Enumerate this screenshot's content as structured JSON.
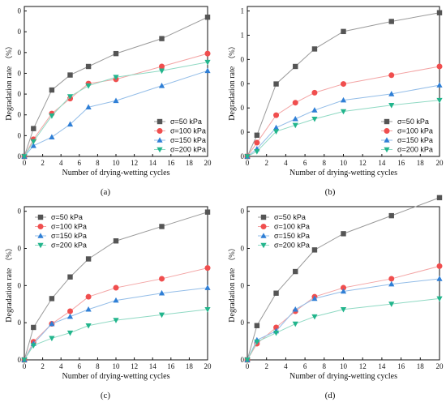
{
  "chart_data": [
    {
      "panel": "(a)",
      "type": "line",
      "xlabel": "Number of drying-wetting cycles",
      "ylabel": "Degradation rate",
      "ylabel_unit": "（%）",
      "x_ticks": [
        "0",
        "2",
        "4",
        "6",
        "8",
        "10",
        "12",
        "14",
        "16",
        "18",
        "20"
      ],
      "y_ticks": [
        "0",
        "0",
        "0",
        "0",
        "0",
        "0",
        "0",
        "0"
      ],
      "xlim": [
        0,
        20
      ],
      "ylim": [
        0,
        70
      ],
      "legend_position": "bottom-right",
      "x": [
        0,
        1,
        3,
        5,
        7,
        10,
        15,
        20
      ],
      "series": [
        {
          "name": "σ=50 kPa",
          "values": [
            0,
            13,
            31,
            38,
            42,
            48,
            55,
            65
          ]
        },
        {
          "name": "σ=100 kPa",
          "values": [
            0,
            8,
            20,
            27,
            34,
            36,
            42,
            48
          ]
        },
        {
          "name": "σ=150 kPa",
          "values": [
            0,
            5,
            9,
            15,
            23,
            26,
            33,
            40
          ]
        },
        {
          "name": "σ=200 kPa",
          "values": [
            0,
            7,
            19,
            28,
            33,
            37,
            40,
            44
          ]
        }
      ]
    },
    {
      "panel": "(b)",
      "type": "line",
      "xlabel": "Number of drying-wetting cycles",
      "ylabel": "Degradation rate",
      "ylabel_unit": "（%）",
      "x_ticks": [
        "0",
        "2",
        "4",
        "6",
        "8",
        "10",
        "12",
        "14",
        "16",
        "18",
        "20"
      ],
      "y_ticks": [
        "0",
        "0",
        "0",
        "0",
        "0",
        "1",
        "1"
      ],
      "xlim": [
        0,
        20
      ],
      "ylim": [
        0,
        120
      ],
      "legend_position": "bottom-right",
      "x": [
        0,
        1,
        3,
        5,
        7,
        10,
        15,
        20
      ],
      "series": [
        {
          "name": "σ=50 kPa",
          "values": [
            0,
            17,
            58,
            72,
            86,
            100,
            108,
            115
          ]
        },
        {
          "name": "σ=100 kPa",
          "values": [
            0,
            11,
            33,
            43,
            51,
            58,
            65,
            72
          ]
        },
        {
          "name": "σ=150 kPa",
          "values": [
            0,
            6,
            23,
            30,
            37,
            45,
            50,
            57
          ]
        },
        {
          "name": "σ=200 kPa",
          "values": [
            0,
            4,
            20,
            25,
            30,
            36,
            41,
            45
          ]
        }
      ]
    },
    {
      "panel": "(c)",
      "type": "line",
      "xlabel": "Number of drying-wetting cycles",
      "ylabel": "Degradation rate",
      "ylabel_unit": "（%）",
      "x_ticks": [
        "0",
        "2",
        "4",
        "6",
        "8",
        "10",
        "12",
        "14",
        "16",
        "18",
        "20"
      ],
      "y_ticks": [
        "0",
        "0",
        "0",
        "0",
        "0"
      ],
      "xlim": [
        0,
        20
      ],
      "ylim": [
        0,
        85
      ],
      "legend_position": "top-left",
      "x": [
        0,
        1,
        3,
        5,
        7,
        10,
        15,
        20
      ],
      "series": [
        {
          "name": "σ=50 kPa",
          "values": [
            0,
            18,
            34,
            46,
            56,
            66,
            74,
            82
          ]
        },
        {
          "name": "σ=100 kPa",
          "values": [
            0,
            10,
            20,
            27,
            35,
            40,
            45,
            51
          ]
        },
        {
          "name": "σ=150 kPa",
          "values": [
            0,
            9,
            20,
            24,
            28,
            33,
            37,
            40
          ]
        },
        {
          "name": "σ=200 kPa",
          "values": [
            0,
            8,
            12,
            15,
            19,
            22,
            25,
            28
          ]
        }
      ]
    },
    {
      "panel": "(d)",
      "type": "line",
      "xlabel": "Number of drying-wetting cycles",
      "ylabel": "Degradation rate",
      "ylabel_unit": "（%）",
      "x_ticks": [
        "0",
        "2",
        "4",
        "6",
        "8",
        "10",
        "12",
        "14",
        "16",
        "18",
        "20"
      ],
      "y_ticks": [
        "0",
        "0",
        "0",
        "0",
        "0"
      ],
      "xlim": [
        0,
        20
      ],
      "ylim": [
        0,
        85
      ],
      "legend_position": "top-left",
      "x": [
        0,
        1,
        3,
        5,
        7,
        10,
        15,
        20
      ],
      "series": [
        {
          "name": "σ=50 kPa",
          "values": [
            0,
            19,
            37,
            49,
            61,
            70,
            80,
            90
          ]
        },
        {
          "name": "σ=100 kPa",
          "values": [
            0,
            9,
            18,
            27,
            35,
            40,
            45,
            52
          ]
        },
        {
          "name": "σ=150 kPa",
          "values": [
            0,
            11,
            16,
            28,
            34,
            38,
            42,
            45
          ]
        },
        {
          "name": "σ=200 kPa",
          "values": [
            0,
            10,
            15,
            20,
            24,
            28,
            31,
            34
          ]
        }
      ]
    }
  ],
  "style": {
    "series_colors": [
      "#555555",
      "#f04e4e",
      "#2f7fd6",
      "#22b58c"
    ],
    "line_colors": [
      "#9a9a9a",
      "#f3a4a4",
      "#93bde8",
      "#8fd9c3"
    ],
    "markers": [
      "square",
      "circle",
      "triangle-up",
      "triangle-down"
    ]
  }
}
